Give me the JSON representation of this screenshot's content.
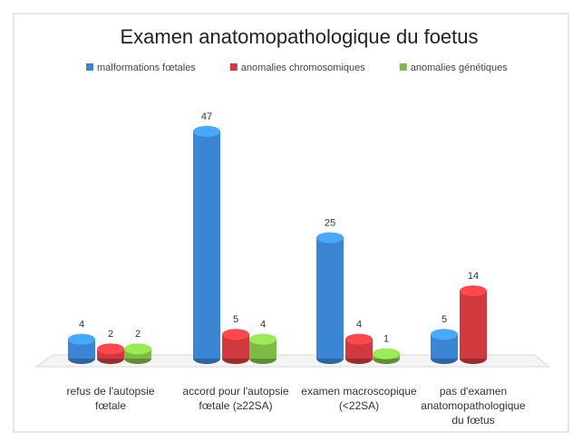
{
  "chart_data": {
    "type": "bar3d",
    "title": "Examen anatomopathologique du foetus",
    "categories": [
      "refus de l'autopsie fœtale",
      "accord pour l'autopsie fœtale (≥22SA)",
      "examen macroscopique (<22SA)",
      "pas d'examen anatomopathologique du fœtus"
    ],
    "series": [
      {
        "name": "malformations fœtales",
        "color": "#3a86d4",
        "values": [
          4,
          47,
          25,
          5
        ]
      },
      {
        "name": "anomalies chromosomiques",
        "color": "#d0393d",
        "values": [
          2,
          5,
          4,
          14
        ]
      },
      {
        "name": "anomalies génétiques",
        "color": "#7cbc45",
        "values": [
          2,
          4,
          1,
          null
        ]
      }
    ],
    "legend": "top"
  }
}
